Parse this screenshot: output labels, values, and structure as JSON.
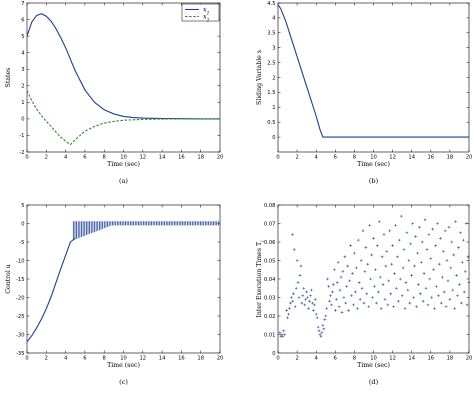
{
  "chart_data": [
    {
      "type": "line",
      "panel_label": "(a)",
      "xlabel": "Time (sec)",
      "ylabel": "States",
      "xlim": [
        0,
        20
      ],
      "ylim": [
        -2,
        7
      ],
      "xticks": [
        0,
        2,
        4,
        6,
        8,
        10,
        12,
        14,
        16,
        18,
        20
      ],
      "yticks": [
        -2,
        -1,
        0,
        1,
        2,
        3,
        4,
        5,
        6,
        7
      ],
      "legend_position": "top-right",
      "series": [
        {
          "name": "x1",
          "label_main": "x",
          "label_sub": "1",
          "color": "#1f3f9a",
          "style": "solid",
          "x": [
            0,
            0.5,
            1,
            1.5,
            2,
            2.5,
            3,
            3.5,
            4,
            4.5,
            5,
            6,
            7,
            8,
            9,
            10,
            11,
            12,
            14,
            16,
            18,
            20
          ],
          "y": [
            5.0,
            5.85,
            6.25,
            6.35,
            6.2,
            5.9,
            5.45,
            4.9,
            4.3,
            3.6,
            2.9,
            1.75,
            1.0,
            0.55,
            0.3,
            0.15,
            0.08,
            0.05,
            0.02,
            0.01,
            0.0,
            0.0
          ]
        },
        {
          "name": "x2",
          "label_main": "x",
          "label_sub": "2",
          "color": "#2e8b2e",
          "style": "dashed",
          "x": [
            0,
            0.5,
            1,
            1.5,
            2,
            2.5,
            3,
            3.5,
            4,
            4.5,
            5,
            6,
            7,
            8,
            9,
            10,
            12,
            14,
            16,
            18,
            20
          ],
          "y": [
            1.7,
            1.1,
            0.6,
            0.2,
            -0.15,
            -0.45,
            -0.8,
            -1.1,
            -1.35,
            -1.55,
            -1.25,
            -0.75,
            -0.45,
            -0.25,
            -0.15,
            -0.08,
            -0.03,
            -0.01,
            0.0,
            0.0,
            0.0
          ]
        }
      ]
    },
    {
      "type": "line",
      "panel_label": "(b)",
      "xlabel": "Time (sec)",
      "ylabel": "Sliding Variable s",
      "xlim": [
        0,
        20
      ],
      "ylim": [
        -0.5,
        4.5
      ],
      "xticks": [
        0,
        2,
        4,
        6,
        8,
        10,
        12,
        14,
        16,
        18,
        20
      ],
      "yticks": [
        0,
        0.5,
        1,
        1.5,
        2,
        2.5,
        3,
        3.5,
        4,
        4.5
      ],
      "ytick_labels": [
        "0",
        "0.5",
        "1",
        "1.5",
        "2",
        "2.5",
        "3",
        "3.5",
        "4",
        "4.5"
      ],
      "series": [
        {
          "name": "",
          "color": "#1f3f9a",
          "style": "solid",
          "x": [
            0,
            0.3,
            0.8,
            1.2,
            1.6,
            2.0,
            2.5,
            3.0,
            3.5,
            4.0,
            4.4,
            4.7,
            20
          ],
          "y": [
            4.45,
            4.3,
            3.9,
            3.5,
            3.1,
            2.7,
            2.2,
            1.7,
            1.2,
            0.7,
            0.25,
            0.0,
            0.0
          ]
        }
      ]
    },
    {
      "type": "line",
      "panel_label": "(c)",
      "xlabel": "Time (sec)",
      "ylabel": "Control u",
      "xlim": [
        0,
        20
      ],
      "ylim": [
        -35,
        5
      ],
      "xticks": [
        0,
        2,
        4,
        6,
        8,
        10,
        12,
        14,
        16,
        18,
        20
      ],
      "yticks": [
        -35,
        -30,
        -25,
        -20,
        -15,
        -10,
        -5,
        0,
        5
      ],
      "series": [
        {
          "name": "",
          "color": "#1f3f9a",
          "style": "solid",
          "x": [
            0,
            0.5,
            1,
            1.5,
            2,
            2.5,
            3,
            3.5,
            4,
            4.5,
            5
          ],
          "y": [
            -32,
            -30.3,
            -28.2,
            -25.8,
            -23.0,
            -19.8,
            -16.0,
            -12.2,
            -8.6,
            -5.0,
            -4.0
          ]
        }
      ],
      "chattering_band": {
        "x_start": 4.8,
        "x_end": 20,
        "lower_start": -4.5,
        "lower_end": -0.5,
        "upper": 0.6
      }
    },
    {
      "type": "scatter",
      "panel_label": "(d)",
      "xlabel": "Time (sec)",
      "ylabel": "Inter Execution Times T",
      "ylabel_sub": "i",
      "xlim": [
        0,
        20
      ],
      "ylim": [
        0,
        0.08
      ],
      "xticks": [
        0,
        2,
        4,
        6,
        8,
        10,
        12,
        14,
        16,
        18,
        20
      ],
      "yticks": [
        0,
        0.01,
        0.02,
        0.03,
        0.04,
        0.05,
        0.06,
        0.07,
        0.08
      ],
      "ytick_labels": [
        "0",
        "0.01",
        "0.02",
        "0.03",
        "0.04",
        "0.05",
        "0.06",
        "0.07",
        "0.08"
      ],
      "marker": "+",
      "color": "#1f3f9a",
      "points": [
        [
          0.2,
          0.011
        ],
        [
          0.3,
          0.009
        ],
        [
          0.4,
          0.01
        ],
        [
          0.5,
          0.009
        ],
        [
          0.6,
          0.012
        ],
        [
          0.7,
          0.01
        ],
        [
          0.9,
          0.023
        ],
        [
          1.0,
          0.019
        ],
        [
          1.1,
          0.021
        ],
        [
          1.2,
          0.024
        ],
        [
          1.3,
          0.027
        ],
        [
          1.4,
          0.03
        ],
        [
          1.5,
          0.064
        ],
        [
          1.55,
          0.028
        ],
        [
          1.6,
          0.032
        ],
        [
          1.7,
          0.056
        ],
        [
          1.8,
          0.025
        ],
        [
          1.9,
          0.035
        ],
        [
          2.0,
          0.05
        ],
        [
          2.1,
          0.038
        ],
        [
          2.2,
          0.03
        ],
        [
          2.3,
          0.042
        ],
        [
          2.4,
          0.047
        ],
        [
          2.5,
          0.027
        ],
        [
          2.6,
          0.031
        ],
        [
          2.7,
          0.035
        ],
        [
          2.8,
          0.026
        ],
        [
          2.9,
          0.029
        ],
        [
          3.0,
          0.033
        ],
        [
          3.1,
          0.03
        ],
        [
          3.2,
          0.024
        ],
        [
          3.3,
          0.028
        ],
        [
          3.4,
          0.031
        ],
        [
          3.5,
          0.034
        ],
        [
          3.6,
          0.027
        ],
        [
          3.7,
          0.023
        ],
        [
          3.8,
          0.026
        ],
        [
          3.9,
          0.029
        ],
        [
          4.0,
          0.021
        ],
        [
          4.1,
          0.019
        ],
        [
          4.2,
          0.014
        ],
        [
          4.3,
          0.012
        ],
        [
          4.4,
          0.01
        ],
        [
          4.5,
          0.009
        ],
        [
          4.6,
          0.011
        ],
        [
          4.7,
          0.015
        ],
        [
          4.8,
          0.013
        ],
        [
          4.9,
          0.018
        ],
        [
          5.0,
          0.02
        ],
        [
          5.1,
          0.024
        ],
        [
          5.2,
          0.04
        ],
        [
          5.3,
          0.036
        ],
        [
          5.4,
          0.028
        ],
        [
          5.5,
          0.031
        ],
        [
          5.6,
          0.026
        ],
        [
          5.7,
          0.033
        ],
        [
          5.8,
          0.037
        ],
        [
          5.9,
          0.045
        ],
        [
          6.0,
          0.023
        ],
        [
          6.1,
          0.029
        ],
        [
          6.2,
          0.038
        ],
        [
          6.3,
          0.049
        ],
        [
          6.4,
          0.025
        ],
        [
          6.5,
          0.034
        ],
        [
          6.6,
          0.041
        ],
        [
          6.7,
          0.022
        ],
        [
          6.8,
          0.044
        ],
        [
          6.9,
          0.03
        ],
        [
          7.0,
          0.052
        ],
        [
          7.1,
          0.027
        ],
        [
          7.2,
          0.036
        ],
        [
          7.3,
          0.047
        ],
        [
          7.4,
          0.023
        ],
        [
          7.5,
          0.039
        ],
        [
          7.6,
          0.058
        ],
        [
          7.7,
          0.031
        ],
        [
          7.8,
          0.043
        ],
        [
          7.9,
          0.026
        ],
        [
          8.0,
          0.054
        ],
        [
          8.1,
          0.033
        ],
        [
          8.2,
          0.046
        ],
        [
          8.3,
          0.024
        ],
        [
          8.4,
          0.061
        ],
        [
          8.5,
          0.038
        ],
        [
          8.6,
          0.029
        ],
        [
          8.7,
          0.05
        ],
        [
          8.8,
          0.035
        ],
        [
          8.9,
          0.066
        ],
        [
          9.0,
          0.027
        ],
        [
          9.1,
          0.044
        ],
        [
          9.2,
          0.057
        ],
        [
          9.3,
          0.032
        ],
        [
          9.4,
          0.048
        ],
        [
          9.5,
          0.025
        ],
        [
          9.6,
          0.069
        ],
        [
          9.7,
          0.04
        ],
        [
          9.8,
          0.053
        ],
        [
          9.9,
          0.03
        ],
        [
          10.0,
          0.062
        ],
        [
          10.1,
          0.036
        ],
        [
          10.2,
          0.045
        ],
        [
          10.3,
          0.027
        ],
        [
          10.4,
          0.058
        ],
        [
          10.5,
          0.033
        ],
        [
          10.6,
          0.071
        ],
        [
          10.7,
          0.041
        ],
        [
          10.8,
          0.024
        ],
        [
          10.9,
          0.052
        ],
        [
          11.0,
          0.037
        ],
        [
          11.1,
          0.064
        ],
        [
          11.2,
          0.029
        ],
        [
          11.3,
          0.047
        ],
        [
          11.4,
          0.055
        ],
        [
          11.5,
          0.026
        ],
        [
          11.6,
          0.039
        ],
        [
          11.7,
          0.066
        ],
        [
          11.8,
          0.032
        ],
        [
          11.9,
          0.048
        ],
        [
          12.0,
          0.058
        ],
        [
          12.1,
          0.025
        ],
        [
          12.2,
          0.043
        ],
        [
          12.3,
          0.069
        ],
        [
          12.4,
          0.035
        ],
        [
          12.5,
          0.052
        ],
        [
          12.6,
          0.028
        ],
        [
          12.7,
          0.061
        ],
        [
          12.8,
          0.04
        ],
        [
          12.9,
          0.074
        ],
        [
          13.0,
          0.031
        ],
        [
          13.1,
          0.046
        ],
        [
          13.2,
          0.056
        ],
        [
          13.3,
          0.024
        ],
        [
          13.4,
          0.038
        ],
        [
          13.5,
          0.065
        ],
        [
          13.6,
          0.034
        ],
        [
          13.7,
          0.05
        ],
        [
          13.8,
          0.027
        ],
        [
          13.9,
          0.059
        ],
        [
          14.0,
          0.042
        ],
        [
          14.1,
          0.07
        ],
        [
          14.2,
          0.03
        ],
        [
          14.3,
          0.047
        ],
        [
          14.4,
          0.063
        ],
        [
          14.5,
          0.025
        ],
        [
          14.6,
          0.054
        ],
        [
          14.7,
          0.037
        ],
        [
          14.8,
          0.068
        ],
        [
          14.9,
          0.032
        ],
        [
          15.0,
          0.049
        ],
        [
          15.1,
          0.06
        ],
        [
          15.2,
          0.028
        ],
        [
          15.3,
          0.043
        ],
        [
          15.4,
          0.072
        ],
        [
          15.5,
          0.035
        ],
        [
          15.6,
          0.056
        ],
        [
          15.7,
          0.026
        ],
        [
          15.8,
          0.064
        ],
        [
          15.9,
          0.04
        ],
        [
          16.0,
          0.051
        ],
        [
          16.1,
          0.03
        ],
        [
          16.2,
          0.067
        ],
        [
          16.3,
          0.045
        ],
        [
          16.4,
          0.024
        ],
        [
          16.5,
          0.058
        ],
        [
          16.6,
          0.036
        ],
        [
          16.7,
          0.07
        ],
        [
          16.8,
          0.031
        ],
        [
          16.9,
          0.048
        ],
        [
          17.0,
          0.062
        ],
        [
          17.1,
          0.027
        ],
        [
          17.2,
          0.041
        ],
        [
          17.3,
          0.055
        ],
        [
          17.4,
          0.033
        ],
        [
          17.5,
          0.066
        ],
        [
          17.6,
          0.025
        ],
        [
          17.7,
          0.05
        ],
        [
          17.8,
          0.039
        ],
        [
          17.9,
          0.068
        ],
        [
          18.0,
          0.029
        ],
        [
          18.1,
          0.046
        ],
        [
          18.2,
          0.06
        ],
        [
          18.3,
          0.034
        ],
        [
          18.4,
          0.053
        ],
        [
          18.5,
          0.024
        ],
        [
          18.6,
          0.071
        ],
        [
          18.7,
          0.042
        ],
        [
          18.8,
          0.031
        ],
        [
          18.9,
          0.057
        ],
        [
          19.0,
          0.037
        ],
        [
          19.1,
          0.065
        ],
        [
          19.2,
          0.027
        ],
        [
          19.3,
          0.049
        ],
        [
          19.4,
          0.061
        ],
        [
          19.5,
          0.033
        ],
        [
          19.6,
          0.044
        ],
        [
          19.7,
          0.07
        ],
        [
          19.8,
          0.026
        ],
        [
          19.9,
          0.052
        ],
        [
          20.0,
          0.038
        ]
      ]
    }
  ]
}
